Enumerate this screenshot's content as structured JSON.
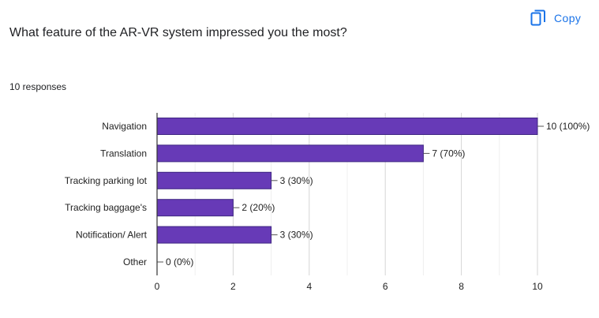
{
  "question": {
    "title": "What feature of the AR-VR system impressed you the most?",
    "responses": "10 responses"
  },
  "copy_button": {
    "label": "Copy",
    "icon": "copy-icon",
    "color": "#1a73e8"
  },
  "chart_data": {
    "type": "bar",
    "orientation": "horizontal",
    "categories": [
      "Navigation",
      "Translation",
      "Tracking parking lot",
      "Tracking baggage's",
      "Notification/ Alert",
      "Other"
    ],
    "values": [
      10,
      7,
      3,
      2,
      3,
      0
    ],
    "data_labels": [
      "10 (100%)",
      "7 (70%)",
      "3 (30%)",
      "2 (20%)",
      "3 (30%)",
      "0 (0%)"
    ],
    "xlim": [
      0,
      10
    ],
    "xticks": [
      0,
      2,
      4,
      6,
      8,
      10
    ],
    "grid": true,
    "bar_color": "#673ab7",
    "bar_edge_color": "#3f2682"
  }
}
